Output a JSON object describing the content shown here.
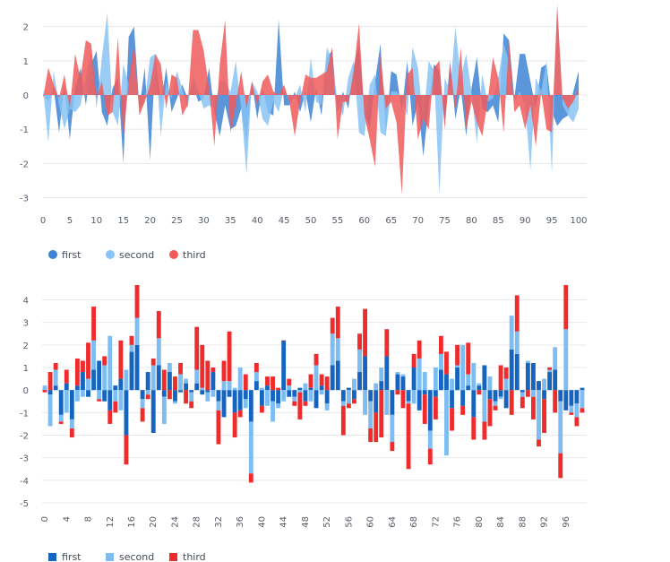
{
  "chart_data": [
    {
      "type": "area",
      "stacked": false,
      "grid": true,
      "legend_position": "bottom-left",
      "x": {
        "ticks": [
          0,
          5,
          10,
          15,
          20,
          25,
          30,
          35,
          40,
          45,
          50,
          55,
          60,
          65,
          70,
          75,
          80,
          85,
          90,
          95,
          100
        ],
        "range": [
          0,
          100
        ]
      },
      "y": {
        "ticks": [
          -3,
          -2,
          -1,
          0,
          1,
          2
        ],
        "range": [
          -3.3,
          2.2
        ]
      },
      "series": [
        {
          "name": "first",
          "color": "#3e82d4",
          "opacity": 0.85,
          "values": [
            0,
            -0.2,
            0.2,
            -1.1,
            0.3,
            -1.3,
            0.2,
            0.8,
            -0.3,
            0.9,
            1.3,
            -0.5,
            -0.9,
            0.2,
            0.5,
            -2,
            1.7,
            2,
            -0.4,
            0.8,
            -1.9,
            1.1,
            -0.3,
            0.8,
            -0.5,
            -0.1,
            0.3,
            -0.1,
            0.3,
            -0.2,
            -0.1,
            0.8,
            -0.5,
            -1.2,
            -0.3,
            -1,
            -0.9,
            -0.4,
            -1.4,
            0.4,
            -0.7,
            0.2,
            -0.5,
            -0.6,
            2.2,
            -0.3,
            -0.3,
            0.1,
            -0.5,
            0.1,
            -0.8,
            0.2,
            -0.6,
            1.1,
            1.3,
            -0.5,
            0.1,
            -0.4,
            0.8,
            1.5,
            -0.5,
            -1,
            0.4,
            1.5,
            -1.1,
            0.7,
            0.6,
            -0.5,
            1,
            -0.9,
            -0.2,
            -1.8,
            -0.3,
            0.9,
            0.7,
            -0.8,
            1,
            -0.7,
            0.2,
            -1.2,
            0.2,
            1.1,
            -0.4,
            -0.5,
            -0.3,
            -0.8,
            1.8,
            1.6,
            -0.1,
            1.2,
            1.2,
            0.4,
            -0.4,
            0.8,
            0.9,
            -0.5,
            -0.9,
            -0.7,
            -0.6,
            0.1,
            0.7
          ]
        },
        {
          "name": "second",
          "color": "#88c3f5",
          "opacity": 0.85,
          "values": [
            0.2,
            -1.4,
            0.7,
            -0.3,
            -1,
            -0.4,
            -0.5,
            -0.3,
            0.5,
            1.3,
            -0.4,
            1.1,
            2.4,
            -0.5,
            -0.9,
            0.9,
            0.3,
            1.2,
            -0.4,
            -0.2,
            1.1,
            1.2,
            -1.2,
            0.4,
            -0.1,
            0.7,
            0.2,
            -0.4,
            0.6,
            0.1,
            -0.4,
            -0.3,
            -0.4,
            0.4,
            0.4,
            0.1,
            1,
            -0.4,
            -2.3,
            0.4,
            0.1,
            -0.7,
            -0.9,
            -0.2,
            -0.5,
            0.2,
            -0.2,
            -0.1,
            0.3,
            -0.5,
            1.1,
            -0.2,
            -0.3,
            1.4,
            1,
            -0.2,
            -0.6,
            0.5,
            1,
            -1.1,
            -1.2,
            0.3,
            0.6,
            -1.1,
            -1.2,
            0.1,
            0.1,
            -0.1,
            -0.6,
            1.4,
            0.8,
            -0.8,
            1,
            0.7,
            -2.9,
            0.5,
            0.1,
            2,
            0.5,
            1.2,
            0.1,
            -1.4,
            0.6,
            -0.2,
            -0.1,
            0.5,
            1.5,
            1,
            -0.2,
            0.1,
            -0.3,
            -2.2,
            0.5,
            0.1,
            1,
            -2.3,
            2.7,
            -0.3,
            -0.6,
            -0.8,
            -0.4
          ]
        },
        {
          "name": "third",
          "color": "#f05a5a",
          "opacity": 0.85,
          "values": [
            -0.1,
            0.8,
            0.3,
            -0.1,
            0.6,
            -0.4,
            1.2,
            0.5,
            1.6,
            1.5,
            -0.1,
            0.4,
            -0.6,
            -0.5,
            1.7,
            -1.3,
            0.4,
            1.5,
            -0.6,
            -0.2,
            0.3,
            1.2,
            0.9,
            -0.4,
            0.6,
            0.5,
            -0.6,
            -0.3,
            1.9,
            1.9,
            1.3,
            0.2,
            -1.5,
            0.9,
            2.2,
            -1.1,
            -0.3,
            0.7,
            -0.4,
            0.4,
            -0.3,
            0.4,
            0.6,
            0.1,
            0,
            0.3,
            -0.2,
            -1.2,
            -0.2,
            0.6,
            0.5,
            0.5,
            0.6,
            0.7,
            1.4,
            -1.3,
            -0.2,
            -0.2,
            0.7,
            2.1,
            -0.6,
            -1.3,
            -2.1,
            1.2,
            -0.4,
            -0.2,
            -0.8,
            -2.9,
            0.6,
            0.8,
            -1.3,
            -0.7,
            -1,
            0.8,
            1,
            -1,
            0.9,
            -0.4,
            1.4,
            -1,
            -0.2,
            -0.8,
            -1.2,
            -0.2,
            1.1,
            0.5,
            -1.1,
            1.6,
            -0.5,
            -0.3,
            -1,
            -0.3,
            -1.5,
            0.1,
            -1,
            -1.1,
            2.6,
            -0.1,
            -0.4,
            -0.2,
            0.2
          ]
        }
      ]
    },
    {
      "type": "bar",
      "stacked": true,
      "grid": true,
      "legend_position": "bottom-left",
      "x": {
        "ticks": [
          0,
          4,
          8,
          12,
          16,
          20,
          24,
          28,
          32,
          36,
          40,
          44,
          48,
          52,
          56,
          60,
          64,
          68,
          72,
          76,
          80,
          84,
          88,
          92,
          96
        ],
        "range": [
          0,
          99
        ]
      },
      "y": {
        "ticks": [
          -5,
          -4,
          -3,
          -2,
          -1,
          0,
          1,
          2,
          3,
          4
        ],
        "range": [
          -5,
          4.1
        ]
      }
    }
  ],
  "legend": [
    {
      "label": "first",
      "color": "#1565c0"
    },
    {
      "label": "second",
      "color": "#7dbdf2"
    },
    {
      "label": "third",
      "color": "#ef2b2b"
    }
  ]
}
